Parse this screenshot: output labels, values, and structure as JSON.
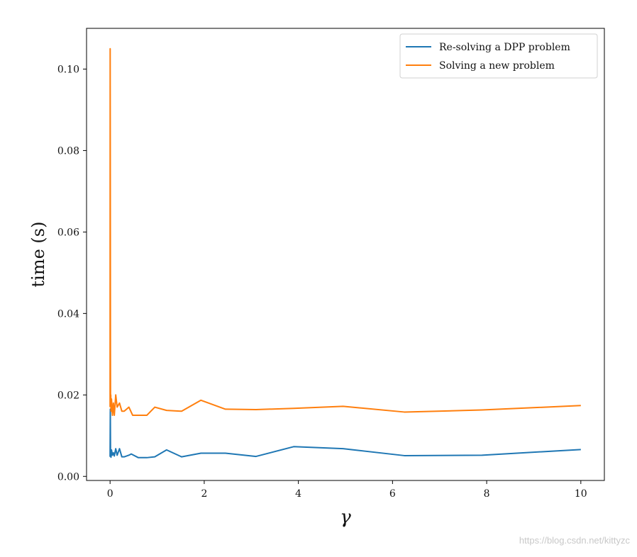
{
  "chart_data": {
    "type": "line",
    "xlabel": "γ",
    "ylabel": "time (s)",
    "xlim": [
      -0.5,
      10.5
    ],
    "ylim": [
      -0.001,
      0.11
    ],
    "xticks": [
      0,
      2,
      4,
      6,
      8,
      10
    ],
    "xtick_labels": [
      "0",
      "2",
      "4",
      "6",
      "8",
      "10"
    ],
    "yticks": [
      0.0,
      0.02,
      0.04,
      0.06,
      0.08,
      0.1
    ],
    "ytick_labels": [
      "0.00",
      "0.02",
      "0.04",
      "0.06",
      "0.08",
      "0.10"
    ],
    "grid": false,
    "legend": "top-right",
    "series": [
      {
        "name": "Re-solving a DPP problem",
        "color": "#1f77b4",
        "x": [
          0.0,
          0.005,
          0.01,
          0.02,
          0.03,
          0.05,
          0.07,
          0.09,
          0.12,
          0.15,
          0.2,
          0.25,
          0.3,
          0.4,
          0.45,
          0.5,
          0.6,
          0.78,
          0.95,
          1.2,
          1.52,
          1.93,
          2.45,
          3.1,
          3.9,
          4.95,
          6.25,
          7.9,
          10.0
        ],
        "y": [
          0.0048,
          0.0165,
          0.005,
          0.0047,
          0.0065,
          0.0052,
          0.0058,
          0.005,
          0.0068,
          0.0052,
          0.0068,
          0.0048,
          0.0048,
          0.0052,
          0.0055,
          0.0052,
          0.0046,
          0.0046,
          0.0048,
          0.0065,
          0.0048,
          0.0057,
          0.0057,
          0.0049,
          0.0073,
          0.0068,
          0.0051,
          0.0052,
          0.0066
        ]
      },
      {
        "name": "Solving a new problem",
        "color": "#ff7f0e",
        "x": [
          0.0,
          0.002,
          0.004,
          0.006,
          0.008,
          0.01,
          0.015,
          0.02,
          0.03,
          0.05,
          0.07,
          0.09,
          0.12,
          0.15,
          0.2,
          0.25,
          0.3,
          0.4,
          0.48,
          0.6,
          0.78,
          0.95,
          1.2,
          1.52,
          1.93,
          2.45,
          3.1,
          3.9,
          4.95,
          6.25,
          7.9,
          10.0
        ],
        "y": [
          0.017,
          0.105,
          0.085,
          0.06,
          0.03,
          0.018,
          0.02,
          0.016,
          0.019,
          0.015,
          0.018,
          0.015,
          0.02,
          0.017,
          0.018,
          0.016,
          0.016,
          0.017,
          0.015,
          0.015,
          0.015,
          0.017,
          0.0162,
          0.016,
          0.0187,
          0.0165,
          0.0164,
          0.0167,
          0.0172,
          0.0158,
          0.0163,
          0.0174
        ]
      }
    ]
  },
  "watermark": "https://blog.csdn.net/kittyzc"
}
